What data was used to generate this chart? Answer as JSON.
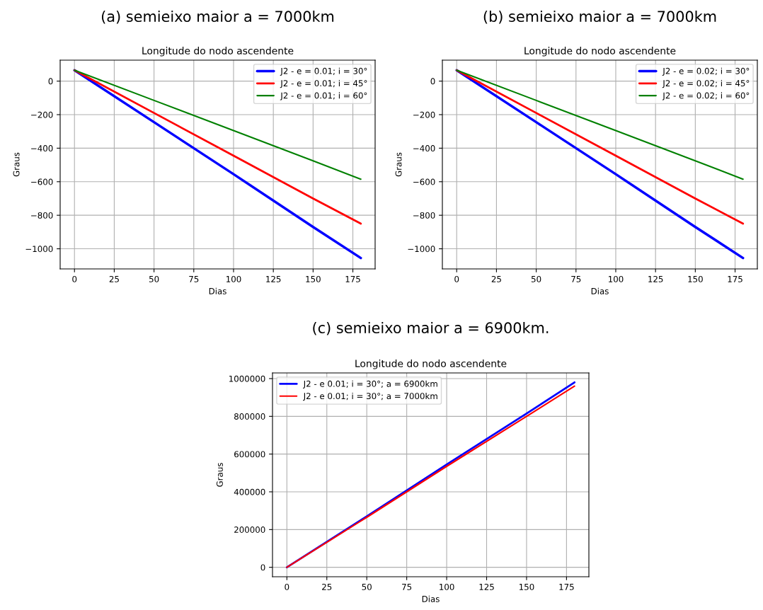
{
  "chart_data": [
    {
      "type": "line",
      "title": "(a) semieixo maior a = 7000km",
      "subtitle": "Longitude do nodo ascendente",
      "xlabel": "Dias",
      "ylabel": "Graus",
      "x": [
        0,
        50,
        100,
        150,
        180
      ],
      "series": [
        {
          "name": "J2 - e = 0.01; i = 30°",
          "color": "#0000ff",
          "values": [
            65,
            -245,
            -555,
            -870,
            -1055
          ]
        },
        {
          "name": "J2 - e = 0.01; i = 45°",
          "color": "#ff0000",
          "values": [
            65,
            -190,
            -445,
            -700,
            -850
          ]
        },
        {
          "name": "J2 - e = 0.01; i = 60°",
          "color": "#008000",
          "values": [
            65,
            -115,
            -295,
            -475,
            -585
          ]
        }
      ],
      "xlim": [
        -9,
        189
      ],
      "xticks": [
        0,
        25,
        50,
        75,
        100,
        125,
        150,
        175
      ],
      "ylim": [
        -1120,
        125
      ],
      "yticks": [
        {
          "value": -1000,
          "label": "−1000"
        },
        {
          "value": -800,
          "label": "−800"
        },
        {
          "value": -600,
          "label": "−600"
        },
        {
          "value": -400,
          "label": "−400"
        },
        {
          "value": -200,
          "label": "−200"
        },
        0
      ],
      "grid": true,
      "legend": "top right"
    },
    {
      "type": "line",
      "title": "(b) semieixo maior a = 7000km",
      "subtitle": "Longitude do nodo ascendente",
      "xlabel": "Dias",
      "ylabel": "Graus",
      "x": [
        0,
        50,
        100,
        150,
        180
      ],
      "series": [
        {
          "name": "J2 - e = 0.02; i = 30°",
          "color": "#0000ff",
          "values": [
            65,
            -245,
            -555,
            -870,
            -1055
          ]
        },
        {
          "name": "J2 - e = 0.02; i = 45°",
          "color": "#ff0000",
          "values": [
            65,
            -190,
            -445,
            -700,
            -850
          ]
        },
        {
          "name": "J2 - e = 0.02; i = 60°",
          "color": "#008000",
          "values": [
            65,
            -115,
            -295,
            -475,
            -585
          ]
        }
      ],
      "xlim": [
        -9,
        189
      ],
      "xticks": [
        0,
        25,
        50,
        75,
        100,
        125,
        150,
        175
      ],
      "ylim": [
        -1120,
        125
      ],
      "yticks": [
        {
          "value": -1000,
          "label": "−1000"
        },
        {
          "value": -800,
          "label": "−800"
        },
        {
          "value": -600,
          "label": "−600"
        },
        {
          "value": -400,
          "label": "−400"
        },
        {
          "value": -200,
          "label": "−200"
        },
        0
      ],
      "grid": true,
      "legend": "top right"
    },
    {
      "type": "line",
      "title": "(c) semieixo maior a = 6900km.",
      "subtitle": "Longitude do nodo ascendente",
      "xlabel": "Dias",
      "ylabel": "Graus",
      "x": [
        0,
        50,
        100,
        150,
        180
      ],
      "series": [
        {
          "name": "J2 - e 0.01; i = 30°; a = 6900km",
          "color": "#0000ff",
          "values": [
            0,
            270000,
            545000,
            815000,
            980000
          ]
        },
        {
          "name": "J2 - e 0.01; i = 30°; a = 7000km",
          "color": "#ff0000",
          "values": [
            0,
            265000,
            535000,
            800000,
            960000
          ]
        }
      ],
      "xlim": [
        -9,
        189
      ],
      "xticks": [
        0,
        25,
        50,
        75,
        100,
        125,
        150,
        175
      ],
      "ylim": [
        -50000,
        1030000
      ],
      "yticks": [
        0,
        200000,
        400000,
        600000,
        800000,
        1000000
      ],
      "grid": true,
      "legend": "top left"
    }
  ]
}
